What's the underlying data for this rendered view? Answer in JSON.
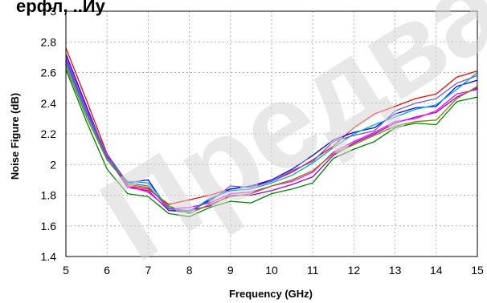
{
  "header": {
    "cropped_text": "ерфл, ..Иу"
  },
  "watermark": {
    "text": "Предварит"
  },
  "chart_data": {
    "type": "line",
    "title": "",
    "xlabel": "Frequency (GHz)",
    "ylabel": "Noise Figure (dB)",
    "xlim": [
      5,
      15
    ],
    "ylim": [
      1.4,
      3.0
    ],
    "xticks": [
      5,
      6,
      7,
      8,
      9,
      10,
      11,
      12,
      13,
      14,
      15
    ],
    "yticks": [
      1.4,
      1.6,
      1.8,
      2.0,
      2.2,
      2.4,
      2.6,
      2.8,
      3.0
    ],
    "ytick_labels": [
      "1.4",
      "1.6",
      "1.8",
      "2",
      "2.2",
      "2.4",
      "2.6",
      "2.8",
      "3"
    ],
    "grid": true,
    "legend": "none",
    "x": [
      5,
      5.5,
      6,
      6.5,
      7,
      7.5,
      8,
      8.5,
      9,
      9.5,
      10,
      10.5,
      11,
      11.5,
      12,
      12.5,
      13,
      13.5,
      14,
      14.5,
      15
    ],
    "series": [
      {
        "color": "#ff0000",
        "values": [
          2.76,
          2.42,
          2.07,
          1.86,
          1.84,
          1.74,
          1.77,
          1.8,
          1.84,
          1.86,
          1.89,
          1.95,
          2.03,
          2.12,
          2.24,
          2.33,
          2.38,
          2.43,
          2.46,
          2.57,
          2.61
        ]
      },
      {
        "color": "#0000ff",
        "values": [
          2.72,
          2.38,
          2.05,
          1.88,
          1.9,
          1.7,
          1.69,
          1.77,
          1.84,
          1.86,
          1.9,
          1.97,
          2.06,
          2.16,
          2.21,
          2.24,
          2.33,
          2.37,
          2.38,
          2.51,
          2.55
        ]
      },
      {
        "color": "#008000",
        "values": [
          2.62,
          2.28,
          1.97,
          1.81,
          1.79,
          1.68,
          1.66,
          1.72,
          1.76,
          1.75,
          1.81,
          1.84,
          1.88,
          2.04,
          2.1,
          2.15,
          2.24,
          2.27,
          2.26,
          2.41,
          2.44
        ]
      },
      {
        "color": "#9900cc",
        "values": [
          2.68,
          2.34,
          2.05,
          1.85,
          1.83,
          1.7,
          1.7,
          1.73,
          1.8,
          1.8,
          1.83,
          1.87,
          1.92,
          2.06,
          2.14,
          2.2,
          2.27,
          2.31,
          2.34,
          2.44,
          2.5
        ]
      },
      {
        "color": "#ff00ff",
        "values": [
          2.7,
          2.36,
          2.06,
          1.86,
          1.82,
          1.71,
          1.72,
          1.75,
          1.81,
          1.82,
          1.86,
          1.89,
          1.95,
          2.08,
          2.15,
          2.21,
          2.28,
          2.3,
          2.35,
          2.46,
          2.49
        ]
      },
      {
        "color": "#00aacc",
        "values": [
          2.66,
          2.33,
          2.04,
          1.89,
          1.88,
          1.72,
          1.69,
          1.78,
          1.83,
          1.84,
          1.88,
          1.93,
          2.01,
          2.11,
          2.2,
          2.26,
          2.31,
          2.36,
          2.39,
          2.49,
          2.6
        ]
      },
      {
        "color": "#808000",
        "values": [
          2.64,
          2.31,
          2.03,
          1.87,
          1.85,
          1.73,
          1.68,
          1.74,
          1.79,
          1.81,
          1.86,
          1.9,
          1.96,
          2.07,
          2.13,
          2.19,
          2.25,
          2.28,
          2.29,
          2.43,
          2.51
        ]
      },
      {
        "color": "#6a5acd",
        "values": [
          2.69,
          2.35,
          2.07,
          1.88,
          1.86,
          1.71,
          1.7,
          1.76,
          1.86,
          1.85,
          1.89,
          1.96,
          2.02,
          2.15,
          2.19,
          2.22,
          2.35,
          2.4,
          2.43,
          2.53,
          2.58
        ]
      }
    ]
  }
}
